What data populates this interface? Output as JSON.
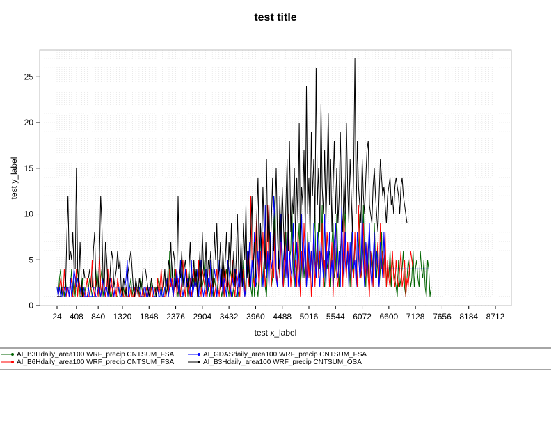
{
  "chart_data": {
    "type": "line",
    "title": "test title",
    "xlabel": "test x_label",
    "ylabel": "test y_label",
    "xlim": [
      24,
      8712
    ],
    "ylim": [
      0,
      27
    ],
    "x_ticks": [
      "24",
      "408",
      "840",
      "1320",
      "1848",
      "2376",
      "2904",
      "3432",
      "3960",
      "4488",
      "5016",
      "5544",
      "6072",
      "6600",
      "7128",
      "7656",
      "8184",
      "8712"
    ],
    "y_ticks": [
      "0",
      "5",
      "10",
      "15",
      "20",
      "25"
    ],
    "grid": true,
    "legend_position": "bottom",
    "x_step": 24,
    "series": [
      {
        "name": "AI_B3Hdaily_area100 WRF_precip CNTSUM_FSA",
        "color": "#006400",
        "values": [
          2,
          1,
          3,
          4,
          1,
          2,
          1,
          3,
          1,
          2,
          2,
          2,
          4,
          1,
          3,
          1,
          3,
          4,
          3,
          1,
          1,
          3,
          1,
          2,
          1,
          1,
          2,
          3,
          2,
          1,
          1,
          1,
          2,
          4,
          2,
          1,
          3,
          4,
          1,
          2,
          1,
          2,
          1,
          3,
          1,
          1,
          2,
          2,
          2,
          1,
          1,
          2,
          1,
          2,
          1,
          2,
          1,
          2,
          1,
          1,
          2,
          3,
          1,
          2,
          1,
          2,
          2,
          2,
          1,
          3,
          2,
          1,
          1,
          2,
          1,
          2,
          2,
          1,
          3,
          2,
          1,
          1,
          2,
          2,
          3,
          2,
          1,
          2,
          1,
          1,
          3,
          2,
          1,
          6,
          3,
          2,
          1,
          4,
          2,
          2,
          1,
          3,
          1,
          1,
          1,
          2,
          1,
          3,
          1,
          4,
          2,
          1,
          1,
          3,
          2,
          4,
          2,
          1,
          1,
          3,
          2,
          3,
          5,
          2,
          1,
          2,
          1,
          2,
          4,
          1,
          3,
          2,
          1,
          3,
          5,
          2,
          1,
          2,
          1,
          3,
          4,
          2,
          1,
          4,
          3,
          1,
          2,
          1,
          1,
          2,
          1,
          3,
          4,
          2,
          5,
          2,
          1,
          6,
          4,
          3,
          2,
          1,
          5,
          1,
          3,
          2,
          1,
          4,
          8,
          2,
          3,
          5,
          2,
          1,
          5,
          4,
          6,
          2,
          3,
          8,
          12,
          4,
          2,
          5,
          3,
          9,
          6,
          2,
          4,
          8,
          3,
          10,
          5,
          6,
          11,
          4,
          2,
          7,
          3,
          6,
          9,
          2,
          4,
          7,
          3,
          5,
          2,
          8,
          4,
          3,
          6,
          2,
          7,
          10,
          3,
          5,
          9,
          4,
          6,
          11,
          3,
          2,
          8,
          4,
          5,
          6,
          2,
          7,
          9,
          3,
          4,
          10,
          5,
          2,
          6,
          8,
          3,
          7,
          11,
          4,
          5,
          6,
          2,
          8,
          4,
          3,
          7,
          5,
          2,
          6,
          10,
          3,
          4,
          11,
          5,
          2,
          7,
          3,
          8,
          4,
          6,
          2,
          9,
          5,
          3,
          7,
          2,
          4,
          8,
          3,
          5,
          6,
          2,
          4,
          3,
          6,
          2,
          5,
          4,
          3,
          2,
          1,
          5,
          2,
          3,
          4,
          6,
          2,
          1,
          3,
          5,
          4,
          2,
          3,
          6,
          2,
          4,
          5,
          3,
          2,
          6,
          4,
          3,
          5,
          2,
          1,
          5,
          4,
          1,
          2
        ]
      },
      {
        "name": "AI_B6Hdaily_area100 WRF_precip CNTSUM_FSA",
        "color": "#ff0000",
        "values": [
          1,
          1,
          2,
          3,
          2,
          1,
          4,
          2,
          1,
          2,
          1,
          2,
          3,
          1,
          1,
          2,
          4,
          1,
          3,
          2,
          1,
          2,
          1,
          1,
          2,
          3,
          1,
          1,
          2,
          5,
          2,
          1,
          3,
          2,
          1,
          6,
          2,
          1,
          3,
          2,
          1,
          2,
          4,
          1,
          2,
          3,
          1,
          1,
          2,
          1,
          3,
          2,
          1,
          2,
          2,
          1,
          1,
          2,
          1,
          1,
          1,
          2,
          1,
          1,
          2,
          1,
          2,
          2,
          1,
          1,
          1,
          2,
          1,
          1,
          2,
          1,
          2,
          1,
          2,
          1,
          1,
          2,
          1,
          3,
          1,
          2,
          4,
          2,
          1,
          1,
          2,
          3,
          1,
          4,
          2,
          3,
          1,
          2,
          4,
          1,
          3,
          2,
          1,
          3,
          5,
          2,
          1,
          4,
          2,
          1,
          3,
          1,
          2,
          4,
          2,
          3,
          1,
          5,
          2,
          1,
          4,
          3,
          2,
          1,
          3,
          2,
          4,
          1,
          2,
          3,
          1,
          2,
          4,
          2,
          1,
          3,
          2,
          5,
          1,
          4,
          2,
          3,
          2,
          1,
          3,
          5,
          2,
          1,
          4,
          3,
          2,
          1,
          5,
          2,
          4,
          1,
          3,
          6,
          2,
          4,
          12,
          5,
          3,
          2,
          7,
          10,
          4,
          2,
          6,
          3,
          8,
          5,
          2,
          4,
          11,
          3,
          6,
          2,
          5,
          3,
          9,
          4,
          2,
          6,
          3,
          7,
          4,
          2,
          8,
          5,
          3,
          10,
          6,
          2,
          4,
          7,
          3,
          5,
          2,
          8,
          4,
          1,
          6,
          3,
          9,
          5,
          2,
          7,
          3,
          6,
          1,
          4,
          8,
          2,
          5,
          7,
          3,
          6,
          4,
          9,
          2,
          5,
          3,
          8,
          6,
          2,
          4,
          7,
          1,
          5,
          9,
          3,
          2,
          6,
          4,
          8,
          2,
          10,
          5,
          3,
          7,
          4,
          6,
          2,
          9,
          3,
          8,
          4,
          2,
          11,
          5,
          3,
          6,
          9,
          2,
          4,
          7,
          3,
          1,
          6,
          4,
          2,
          8,
          3,
          5,
          7,
          2,
          9,
          4,
          6,
          3,
          8,
          2,
          5,
          3,
          2,
          4,
          6,
          3,
          2,
          5,
          3,
          2,
          4,
          6,
          2,
          3,
          5,
          1,
          3,
          2,
          4,
          6,
          5,
          4
        ]
      },
      {
        "name": "AI_GDASdaily_area100 WRF_precip CNTSUM_FSA",
        "color": "#0000ff",
        "values": [
          2,
          1,
          2,
          1,
          1,
          2,
          2,
          1,
          2,
          2,
          1,
          3,
          1,
          2,
          4,
          3,
          2,
          3,
          2,
          2,
          1,
          1,
          2,
          1,
          1,
          1,
          2,
          1,
          1,
          1,
          2,
          2,
          1,
          1,
          2,
          2,
          1,
          2,
          3,
          1,
          2,
          2,
          1,
          2,
          3,
          2,
          2,
          1,
          2,
          2,
          2,
          2,
          1,
          1,
          2,
          2,
          2,
          3,
          5,
          1,
          2,
          2,
          2,
          2,
          1,
          2,
          2,
          2,
          2,
          1,
          1,
          1,
          2,
          2,
          1,
          1,
          2,
          2,
          2,
          2,
          1,
          1,
          1,
          2,
          1,
          1,
          2,
          1,
          1,
          2,
          2,
          3,
          1,
          2,
          3,
          2,
          1,
          3,
          2,
          4,
          2,
          1,
          5,
          2,
          1,
          2,
          4,
          2,
          3,
          2,
          1,
          5,
          1,
          2,
          3,
          2,
          4,
          1,
          3,
          5,
          2,
          1,
          2,
          4,
          1,
          3,
          2,
          5,
          1,
          2,
          4,
          3,
          1,
          2,
          5,
          2,
          4,
          1,
          3,
          2,
          1,
          5,
          4,
          2,
          1,
          3,
          2,
          4,
          3,
          1,
          4,
          2,
          5,
          2,
          3,
          1,
          2,
          6,
          4,
          7,
          2,
          5,
          3,
          8,
          2,
          4,
          6,
          3,
          9,
          5,
          2,
          4,
          11,
          3,
          6,
          2,
          8,
          4,
          5,
          12,
          9,
          3,
          2,
          6,
          4,
          10,
          2,
          5,
          7,
          3,
          8,
          2,
          6,
          4,
          3,
          9,
          5,
          2,
          7,
          4,
          2,
          6,
          10,
          3,
          5,
          8,
          2,
          4,
          7,
          3,
          6,
          2,
          9,
          5,
          3,
          8,
          4,
          2,
          7,
          5,
          3,
          10,
          2,
          6,
          4,
          8,
          3,
          5,
          2,
          7,
          9,
          4,
          3,
          6,
          2,
          11,
          5,
          3,
          8,
          4,
          6,
          2,
          7,
          3,
          9,
          4,
          5,
          2,
          8,
          6,
          3,
          4,
          10,
          5,
          2,
          7,
          3,
          6,
          9,
          4,
          2,
          5,
          8,
          3,
          6,
          4,
          2,
          7,
          5,
          3,
          8,
          4,
          4,
          4,
          4,
          4,
          4,
          4,
          4,
          4,
          4,
          4,
          4,
          4,
          4,
          4,
          4,
          4,
          4,
          4,
          4,
          4,
          4,
          4,
          4,
          4,
          4,
          4,
          4,
          4,
          4,
          4,
          4,
          4,
          4,
          4,
          4,
          4
        ]
      },
      {
        "name": "AI_B3Hdaily_area100 WRF_precip CNTSUM_OSA",
        "color": "#000000",
        "values": [
          1,
          1,
          1,
          1,
          2,
          2,
          2,
          2,
          7,
          12,
          5,
          6,
          5,
          8,
          4,
          4,
          15,
          4,
          2,
          7,
          3,
          1,
          4,
          3,
          3,
          3,
          3,
          4,
          2,
          2,
          6,
          8,
          3,
          2,
          2,
          5,
          12,
          9,
          3,
          2,
          7,
          5,
          2,
          1,
          4,
          6,
          5,
          2,
          3,
          4,
          6,
          4,
          5,
          2,
          1,
          3,
          2,
          1,
          3,
          4,
          5,
          6,
          4,
          2,
          1,
          3,
          2,
          1,
          3,
          2,
          2,
          4,
          4,
          4,
          3,
          2,
          1,
          2,
          3,
          2,
          2,
          2,
          1,
          2,
          2,
          2,
          2,
          2,
          2,
          4,
          1,
          2,
          5,
          4,
          7,
          3,
          6,
          5,
          2,
          3,
          12,
          4,
          3,
          6,
          2,
          4,
          5,
          3,
          2,
          4,
          7,
          2,
          3,
          5,
          2,
          4,
          1,
          3,
          6,
          2,
          8,
          4,
          3,
          7,
          2,
          5,
          4,
          6,
          3,
          2,
          8,
          5,
          9,
          3,
          4,
          7,
          2,
          6,
          3,
          5,
          8,
          2,
          7,
          4,
          9,
          3,
          6,
          2,
          5,
          10,
          4,
          3,
          7,
          2,
          9,
          5,
          11,
          3,
          6,
          2,
          8,
          12,
          4,
          7,
          3,
          10,
          14,
          5,
          9,
          6,
          13,
          8,
          4,
          16,
          7,
          11,
          5,
          9,
          14,
          6,
          10,
          15,
          8,
          4,
          12,
          7,
          13,
          9,
          5,
          11,
          16,
          6,
          18,
          8,
          12,
          10,
          15,
          7,
          14,
          9,
          20,
          6,
          13,
          11,
          17,
          8,
          24,
          10,
          14,
          7,
          19,
          12,
          16,
          9,
          26,
          11,
          15,
          8,
          22,
          13,
          10,
          17,
          9,
          14,
          21,
          11,
          16,
          8,
          13,
          18,
          10,
          15,
          9,
          12,
          19,
          11,
          8,
          14,
          10,
          20,
          13,
          9,
          16,
          12,
          8,
          15,
          27,
          10,
          18,
          13,
          11,
          9,
          16,
          12,
          10,
          14,
          17,
          18,
          11,
          10,
          9,
          13,
          15,
          12,
          10,
          8,
          12,
          16,
          14,
          12,
          13,
          11,
          9,
          12,
          13,
          14,
          11,
          12,
          10,
          13,
          14,
          13,
          12,
          10,
          13,
          14,
          12,
          11,
          10,
          9
        ]
      }
    ]
  }
}
